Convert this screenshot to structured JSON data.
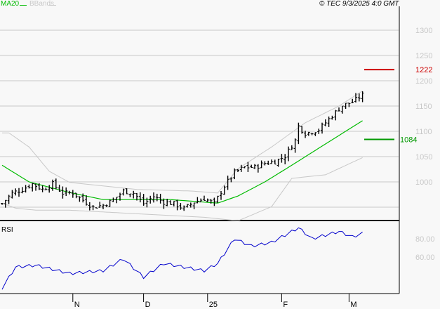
{
  "legend": {
    "ma_label": "MA20",
    "bb_label": "BBands"
  },
  "copyright": "© TEC 9/3/2025 4:0 GMT",
  "colors": {
    "ma": "#00bb00",
    "bands": "#c8c8c8",
    "rsi": "#0000cc",
    "resistance": "#cc0000",
    "support": "#009900",
    "grid": "#c8c8c8"
  },
  "chart_data": [
    {
      "type": "ohlc",
      "title": "",
      "ylim": [
        935,
        1340
      ],
      "yticks": [
        1000,
        1050,
        1100,
        1150,
        1200,
        1250,
        1300
      ],
      "ytick_labels": [
        "1000",
        "1050",
        "1100",
        "1150",
        "1200",
        "1250",
        "1300"
      ],
      "xtick_labels": [
        {
          "label": "N",
          "bar": 21
        },
        {
          "label": "D",
          "bar": 42
        },
        {
          "label": "25",
          "bar": 61
        },
        {
          "label": "F",
          "bar": 83
        },
        {
          "label": "M",
          "bar": 103
        }
      ],
      "bar_count": 108,
      "close_keypoints": [
        [
          0,
          957
        ],
        [
          3,
          978
        ],
        [
          6,
          985
        ],
        [
          9,
          996
        ],
        [
          12,
          985
        ],
        [
          15,
          996
        ],
        [
          18,
          978
        ],
        [
          21,
          978
        ],
        [
          24,
          964
        ],
        [
          27,
          950
        ],
        [
          30,
          954
        ],
        [
          33,
          964
        ],
        [
          36,
          982
        ],
        [
          39,
          978
        ],
        [
          42,
          957
        ],
        [
          45,
          971
        ],
        [
          48,
          960
        ],
        [
          51,
          957
        ],
        [
          54,
          947
        ],
        [
          57,
          960
        ],
        [
          60,
          967
        ],
        [
          63,
          957
        ],
        [
          66,
          992
        ],
        [
          69,
          1019
        ],
        [
          72,
          1029
        ],
        [
          75,
          1029
        ],
        [
          78,
          1037
        ],
        [
          81,
          1040
        ],
        [
          84,
          1051
        ],
        [
          87,
          1082
        ],
        [
          88,
          1110
        ],
        [
          90,
          1096
        ],
        [
          94,
          1103
        ],
        [
          98,
          1131
        ],
        [
          101,
          1151
        ],
        [
          104,
          1158
        ],
        [
          107,
          1172
        ]
      ],
      "ma20_keypoints": [
        [
          0,
          1033
        ],
        [
          8,
          1000
        ],
        [
          20,
          979
        ],
        [
          30,
          965
        ],
        [
          50,
          965
        ],
        [
          64,
          958
        ],
        [
          70,
          972
        ],
        [
          78,
          1000
        ],
        [
          86,
          1033
        ],
        [
          96,
          1075
        ],
        [
          107,
          1121
        ]
      ],
      "bb_upper_keypoints": [
        [
          0,
          1097
        ],
        [
          2,
          1097
        ],
        [
          8,
          1069
        ],
        [
          14,
          1021
        ],
        [
          20,
          999
        ],
        [
          40,
          985
        ],
        [
          56,
          982
        ],
        [
          64,
          978
        ],
        [
          70,
          1026
        ],
        [
          80,
          1069
        ],
        [
          90,
          1117
        ],
        [
          100,
          1150
        ],
        [
          107,
          1180
        ]
      ],
      "bb_lower_keypoints": [
        [
          0,
          958
        ],
        [
          4,
          948
        ],
        [
          10,
          944
        ],
        [
          20,
          944
        ],
        [
          40,
          937
        ],
        [
          60,
          930
        ],
        [
          70,
          923
        ],
        [
          80,
          951
        ],
        [
          86,
          1007
        ],
        [
          96,
          1014
        ],
        [
          107,
          1048
        ]
      ],
      "levels": [
        {
          "label": "1222",
          "value": 1222,
          "kind": "resistance"
        },
        {
          "label": "1084",
          "value": 1084,
          "kind": "support"
        }
      ]
    },
    {
      "type": "line",
      "title": "RSI",
      "ylim": [
        5,
        100
      ],
      "ytick_labels": [
        {
          "label": "80",
          "value": 80
        },
        {
          "label": "60",
          "value": 60
        }
      ],
      "keypoints": [
        [
          0,
          26
        ],
        [
          4,
          49
        ],
        [
          10,
          51
        ],
        [
          20,
          42
        ],
        [
          30,
          45
        ],
        [
          36,
          58
        ],
        [
          42,
          38
        ],
        [
          48,
          53
        ],
        [
          60,
          45
        ],
        [
          64,
          53
        ],
        [
          69,
          80
        ],
        [
          74,
          72
        ],
        [
          80,
          76
        ],
        [
          88,
          92
        ],
        [
          92,
          80
        ],
        [
          100,
          88
        ],
        [
          104,
          82
        ],
        [
          107,
          86
        ]
      ]
    }
  ]
}
